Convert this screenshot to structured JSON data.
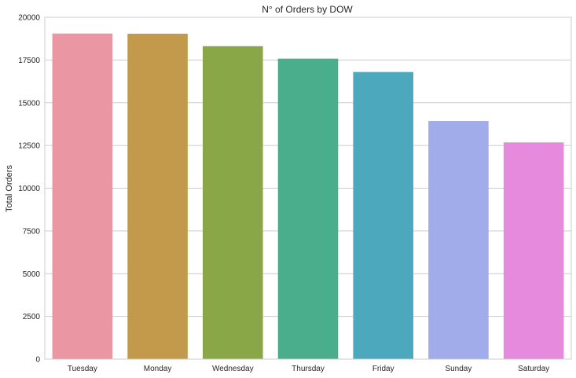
{
  "chart_data": {
    "type": "bar",
    "title": "N° of Orders by DOW",
    "xlabel": "",
    "ylabel": "Total Orders",
    "categories": [
      "Tuesday",
      "Monday",
      "Wednesday",
      "Thursday",
      "Friday",
      "Sunday",
      "Saturday"
    ],
    "values": [
      19050,
      19040,
      18310,
      17580,
      16800,
      13930,
      12680
    ],
    "colors": [
      "#ea96a3",
      "#c39a4c",
      "#89a746",
      "#4aad8c",
      "#4ca9bd",
      "#a1aceb",
      "#e68ade"
    ],
    "ylim": [
      0,
      20000
    ],
    "yticks": [
      0,
      2500,
      5000,
      7500,
      10000,
      12500,
      15000,
      17500,
      20000
    ],
    "grid": "horizontal",
    "background": "#ffffff",
    "grid_color": "#cccccc"
  }
}
